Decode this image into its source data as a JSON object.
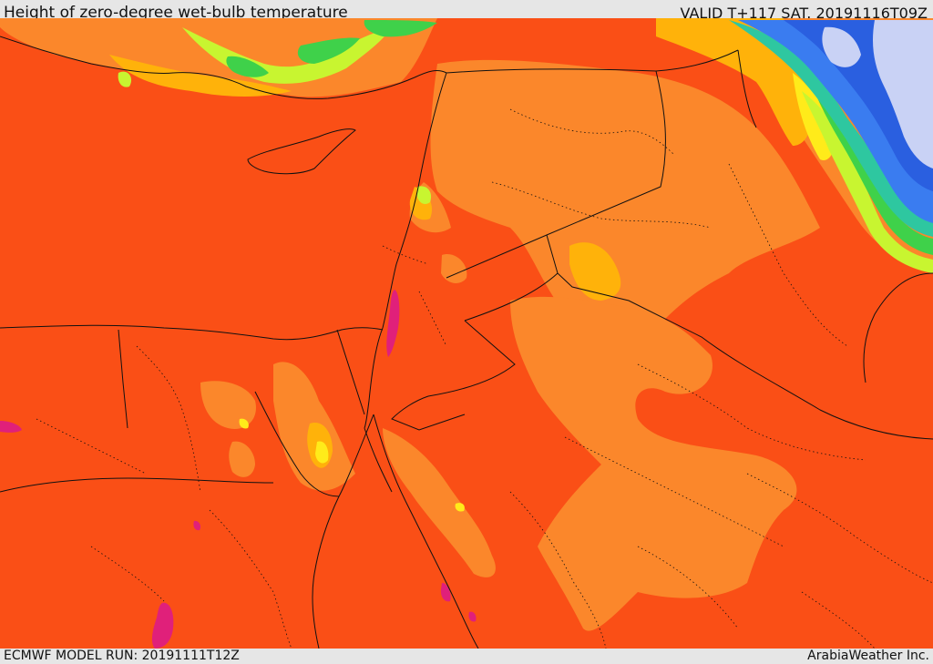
{
  "header": {
    "title": "Height of zero-degree wet-bulb temperature",
    "valid": "VALID T+117 SAT. 20191116T09Z"
  },
  "footer": {
    "model_run": "ECMWF MODEL RUN: 20191111T12Z",
    "credit": "ArabiaWeather Inc."
  },
  "map": {
    "colors": {
      "base": "#fa4f16",
      "light_orange": "#fb872b",
      "amber": "#ffb20a",
      "yellow": "#ffeb1a",
      "yellow_green": "#c8f530",
      "green": "#3fd14a",
      "teal": "#2ec7a0",
      "blue": "#3a7cf0",
      "dark_blue": "#2a5fe0",
      "lavender": "#c9d2f5",
      "magenta": "#e0207a",
      "border": "#111111"
    }
  }
}
